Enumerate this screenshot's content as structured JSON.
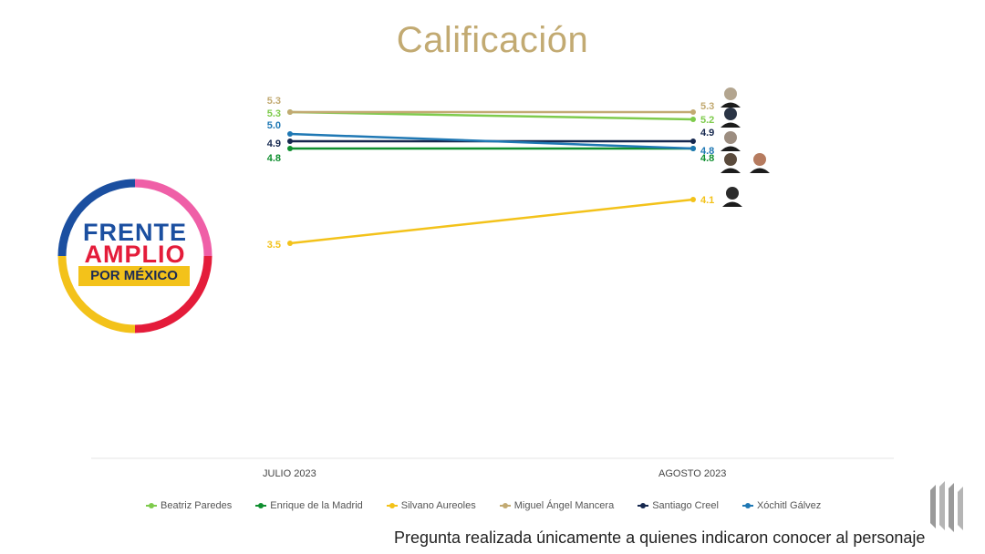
{
  "header": {
    "title": "Calificación"
  },
  "logo": {
    "line1": "FRENTE",
    "line2": "AMPLIO",
    "line3": "POR MÉXICO"
  },
  "footer": {
    "note": "Pregunta realizada únicamente a quienes indicaron conocer al personaje"
  },
  "chart_data": {
    "type": "line",
    "title": "Calificación",
    "categories": [
      "JULIO 2023",
      "AGOSTO 2023"
    ],
    "series": [
      {
        "name": "Beatriz Paredes",
        "values": [
          5.3,
          5.2
        ],
        "color": "#7ecb4c"
      },
      {
        "name": "Enrique de la Madrid",
        "values": [
          4.8,
          4.8
        ],
        "color": "#0f8f2f"
      },
      {
        "name": "Silvano Aureoles",
        "values": [
          3.5,
          4.1
        ],
        "color": "#f3c21a"
      },
      {
        "name": "Miguel Ángel Mancera",
        "values": [
          5.3,
          5.3
        ],
        "color": "#c2aa72"
      },
      {
        "name": "Santiago Creel",
        "values": [
          4.9,
          4.9
        ],
        "color": "#16284f"
      },
      {
        "name": "Xóchitl Gálvez",
        "values": [
          5.0,
          4.8
        ],
        "color": "#1f78b4"
      }
    ],
    "grid": false,
    "legend_placement": "bottom"
  }
}
